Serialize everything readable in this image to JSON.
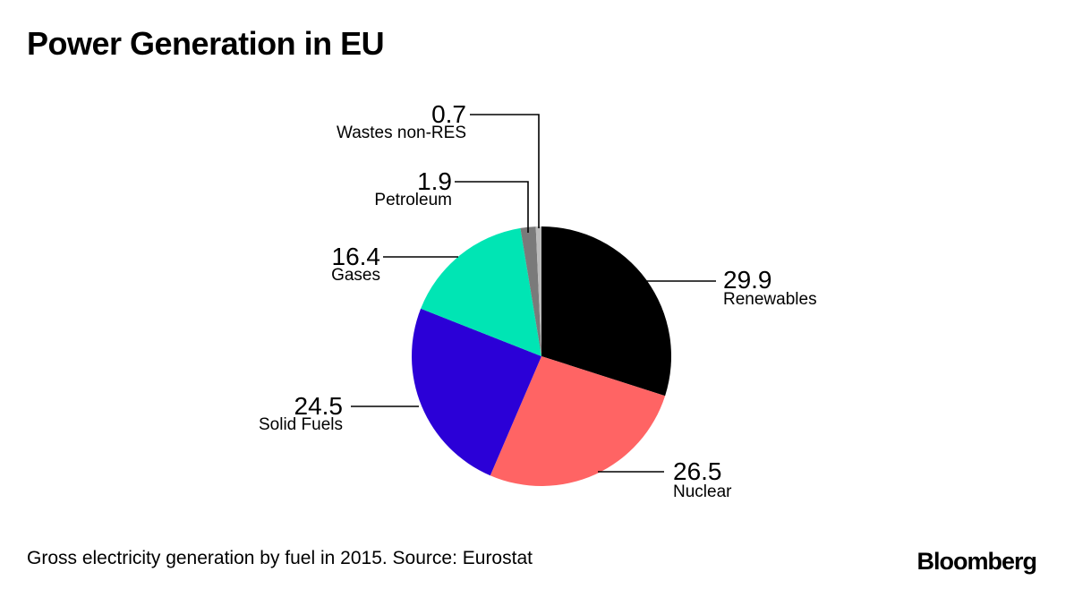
{
  "title": "Power Generation in EU",
  "footnote": "Gross electricity generation by fuel in 2015. Source: Eurostat",
  "brand": "Bloomberg",
  "chart_data": {
    "type": "pie",
    "title": "Power Generation in EU",
    "slices": [
      {
        "label": "Renewables",
        "value": 29.9,
        "display": "29.9",
        "color": "#000000"
      },
      {
        "label": "Nuclear",
        "value": 26.5,
        "display": "26.5",
        "color": "#ff6464"
      },
      {
        "label": "Solid Fuels",
        "value": 24.5,
        "display": "24.5",
        "color": "#2b00d7"
      },
      {
        "label": "Gases",
        "value": 16.4,
        "display": "16.4",
        "color": "#00e5b4"
      },
      {
        "label": "Petroleum",
        "value": 1.9,
        "display": "1.9",
        "color": "#7a7a7a"
      },
      {
        "label": "Wastes non-RES",
        "value": 0.7,
        "display": "0.7",
        "color": "#bbbbbb"
      }
    ],
    "legend": "none"
  }
}
